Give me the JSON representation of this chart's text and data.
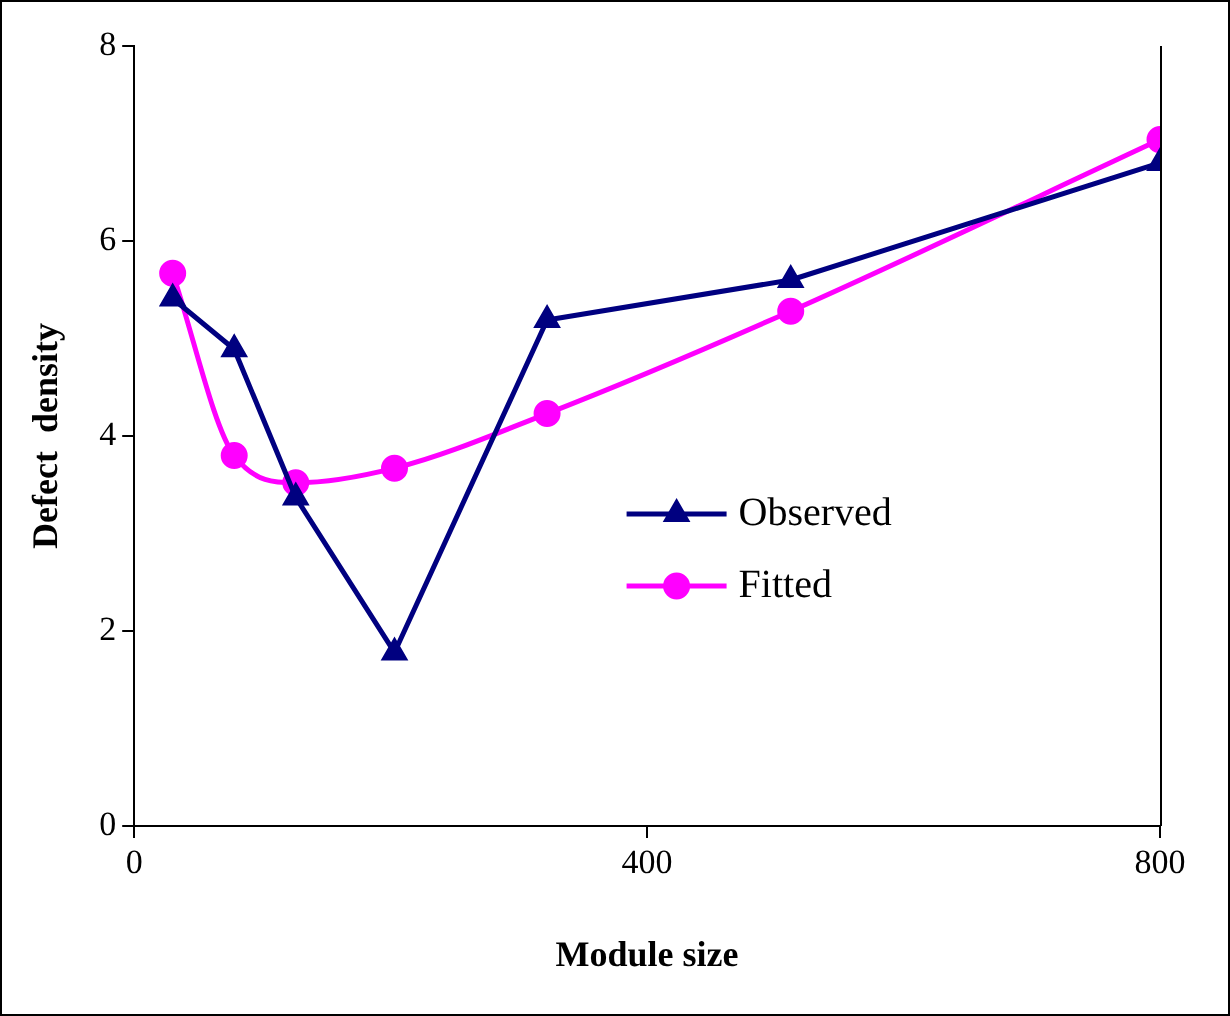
{
  "chart_data": {
    "type": "line",
    "xlabel": "Module size",
    "ylabel": "Defect  density",
    "x": [
      30,
      78,
      126,
      203,
      322,
      512,
      800
    ],
    "series": [
      {
        "name": "Observed",
        "color": "#000080",
        "marker": "triangle",
        "values": [
          5.41,
          4.89,
          3.37,
          1.78,
          5.19,
          5.6,
          6.8
        ]
      },
      {
        "name": "Fitted",
        "color": "#ff00ff",
        "marker": "circle",
        "values": [
          5.67,
          3.8,
          3.52,
          3.67,
          4.23,
          5.28,
          7.04
        ]
      }
    ],
    "xlim": [
      0,
      800
    ],
    "xticks": [
      0,
      400,
      800
    ],
    "ylim": [
      0,
      8
    ],
    "yticks": [
      0,
      2,
      4,
      6,
      8
    ],
    "grid": false,
    "legend": "right"
  }
}
